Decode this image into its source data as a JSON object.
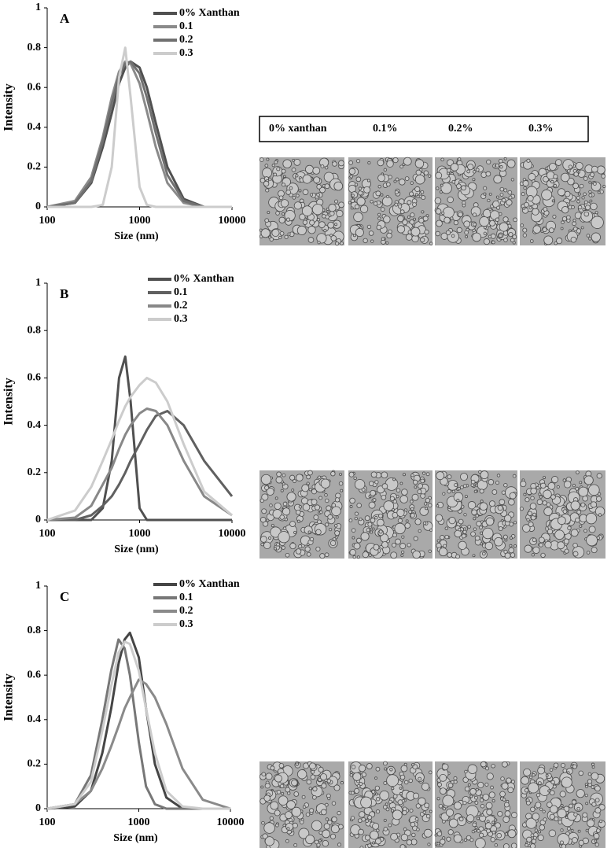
{
  "micrograph_header": [
    "0% xanthan",
    "0.1%",
    "0.2%",
    "0.3%"
  ],
  "chart_data": [
    {
      "type": "line",
      "title": "A",
      "xlabel": "Size (nm)",
      "ylabel": "Intensity",
      "xscale": "log",
      "legend": "upper right",
      "x": [
        100,
        200,
        300,
        400,
        500,
        600,
        700,
        800,
        1000,
        1200,
        1500,
        2000,
        3000,
        5000,
        10000
      ],
      "xlim": [
        100,
        10000
      ],
      "xticks": [
        100,
        1000,
        10000
      ],
      "ylim": [
        0,
        1
      ],
      "yticks": [
        0,
        0.2,
        0.4,
        0.6,
        0.8,
        1
      ],
      "series": [
        {
          "name": "0% Xanthan",
          "color": "#505050",
          "values": [
            0,
            0.02,
            0.12,
            0.3,
            0.47,
            0.62,
            0.7,
            0.73,
            0.7,
            0.6,
            0.42,
            0.2,
            0.04,
            0,
            0
          ]
        },
        {
          "name": "0.1",
          "color": "#8a8a8a",
          "values": [
            0,
            0.03,
            0.15,
            0.35,
            0.55,
            0.68,
            0.73,
            0.72,
            0.62,
            0.48,
            0.3,
            0.12,
            0.02,
            0,
            0
          ]
        },
        {
          "name": "0.2",
          "color": "#707070",
          "values": [
            0,
            0.02,
            0.13,
            0.33,
            0.52,
            0.66,
            0.72,
            0.73,
            0.67,
            0.55,
            0.37,
            0.16,
            0.03,
            0,
            0
          ]
        },
        {
          "name": "0.3",
          "color": "#cccccc",
          "values": [
            0,
            0,
            0,
            0.01,
            0.2,
            0.65,
            0.8,
            0.55,
            0.1,
            0.01,
            0,
            0,
            0,
            0,
            0
          ]
        }
      ]
    },
    {
      "type": "line",
      "title": "B",
      "xlabel": "Size (nm)",
      "ylabel": "Intensity",
      "xscale": "log",
      "legend": "upper right",
      "x": [
        100,
        200,
        300,
        400,
        500,
        600,
        700,
        800,
        1000,
        1200,
        1500,
        2000,
        3000,
        5000,
        10000
      ],
      "xlim": [
        100,
        10000
      ],
      "xticks": [
        100,
        1000,
        10000
      ],
      "ylim": [
        0,
        1
      ],
      "yticks": [
        0,
        0.2,
        0.4,
        0.6,
        0.8,
        1
      ],
      "series": [
        {
          "name": "0% Xanthan",
          "color": "#505050",
          "values": [
            0,
            0,
            0,
            0.05,
            0.25,
            0.6,
            0.69,
            0.5,
            0.05,
            0,
            0,
            0,
            0,
            0,
            0
          ]
        },
        {
          "name": "0.1",
          "color": "#606060",
          "values": [
            0,
            0,
            0.02,
            0.06,
            0.1,
            0.15,
            0.2,
            0.25,
            0.32,
            0.38,
            0.44,
            0.46,
            0.4,
            0.25,
            0.1
          ]
        },
        {
          "name": "0.2",
          "color": "#888888",
          "values": [
            0,
            0.01,
            0.06,
            0.15,
            0.22,
            0.3,
            0.36,
            0.4,
            0.45,
            0.47,
            0.46,
            0.4,
            0.25,
            0.1,
            0.02
          ]
        },
        {
          "name": "0.3",
          "color": "#cccccc",
          "values": [
            0,
            0.04,
            0.14,
            0.25,
            0.34,
            0.42,
            0.48,
            0.52,
            0.57,
            0.6,
            0.58,
            0.5,
            0.32,
            0.12,
            0.02
          ]
        }
      ]
    },
    {
      "type": "line",
      "title": "C",
      "xlabel": "Size (nm)",
      "ylabel": "Intensity",
      "xscale": "log",
      "legend": "upper right",
      "x": [
        100,
        200,
        300,
        400,
        500,
        600,
        700,
        800,
        1000,
        1200,
        1500,
        2000,
        3000,
        5000,
        10000
      ],
      "xlim": [
        100,
        10000
      ],
      "xticks": [
        100,
        1000,
        10000
      ],
      "ylim": [
        0,
        1
      ],
      "yticks": [
        0,
        0.2,
        0.4,
        0.6,
        0.8,
        1
      ],
      "series": [
        {
          "name": "0% Xanthan",
          "color": "#454545",
          "values": [
            0,
            0.01,
            0.08,
            0.25,
            0.45,
            0.65,
            0.76,
            0.79,
            0.68,
            0.45,
            0.2,
            0.05,
            0,
            0,
            0
          ]
        },
        {
          "name": "0.1",
          "color": "#777777",
          "values": [
            0,
            0.02,
            0.15,
            0.4,
            0.62,
            0.76,
            0.72,
            0.6,
            0.3,
            0.1,
            0.02,
            0,
            0,
            0,
            0
          ]
        },
        {
          "name": "0.2",
          "color": "#8a8a8a",
          "values": [
            0,
            0.02,
            0.08,
            0.18,
            0.28,
            0.37,
            0.45,
            0.5,
            0.58,
            0.56,
            0.5,
            0.38,
            0.18,
            0.04,
            0
          ]
        },
        {
          "name": "0.3",
          "color": "#cccccc",
          "values": [
            0,
            0.02,
            0.12,
            0.35,
            0.55,
            0.7,
            0.75,
            0.74,
            0.62,
            0.45,
            0.25,
            0.08,
            0.01,
            0,
            0
          ]
        }
      ]
    }
  ]
}
